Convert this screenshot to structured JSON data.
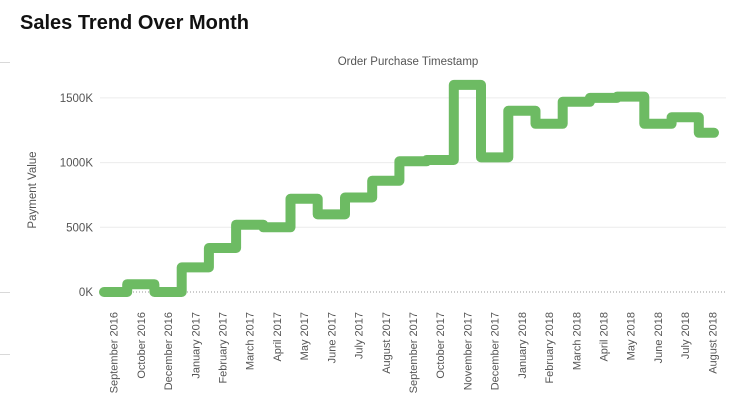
{
  "dashboard": {
    "title": "Sales Trend Over Month"
  },
  "chart_data": {
    "type": "line",
    "title": "Order Purchase Timestamp",
    "xlabel": "Order Purchase Timestamp",
    "ylabel": "Payment Value",
    "line_shape": "step",
    "color": "#6DBB63",
    "grid": true,
    "ylim": [
      0,
      1700000
    ],
    "yticks": [
      0,
      500000,
      1000000,
      1500000
    ],
    "ytick_labels": [
      "0K",
      "500K",
      "1000K",
      "1500K"
    ],
    "xtick_labels": [
      "September 2016",
      "October 2016",
      "December 2016",
      "January 2017",
      "February 2017",
      "March 2017",
      "April 2017",
      "May 2017",
      "June 2017",
      "July 2017",
      "August 2017",
      "September 2017",
      "October 2017",
      "November 2017",
      "December 2017",
      "January 2018",
      "February 2018",
      "March 2018",
      "April 2018",
      "May 2018",
      "June 2018",
      "July 2018",
      "August 2018"
    ],
    "series": [
      {
        "values": [
          0,
          60000,
          0,
          190000,
          340000,
          520000,
          500000,
          720000,
          600000,
          730000,
          860000,
          1010000,
          1020000,
          1600000,
          1040000,
          1400000,
          1300000,
          1470000,
          1500000,
          1510000,
          1300000,
          1350000,
          1230000
        ]
      }
    ]
  }
}
